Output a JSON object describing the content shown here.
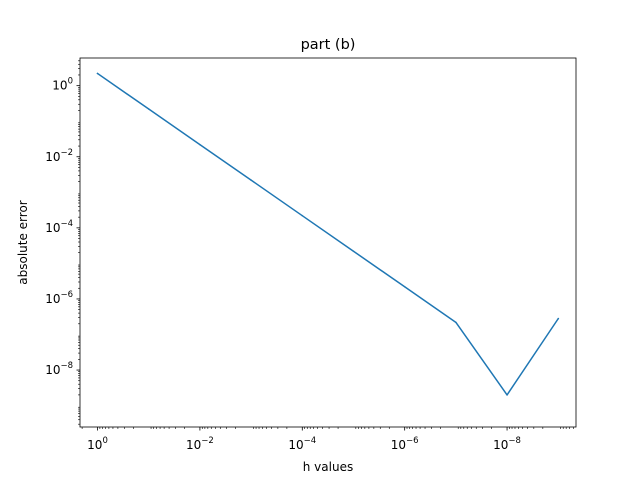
{
  "chart_data": {
    "type": "line",
    "title": "part (b)",
    "xlabel": "h values",
    "ylabel": "absolute error",
    "x_scale": "log",
    "y_scale": "log",
    "x_reversed": true,
    "xlim": [
      2.2,
      4.5e-10
    ],
    "ylim": [
      2.5e-10,
      6.0
    ],
    "grid": false,
    "x_ticks": [
      1,
      0.01,
      0.0001,
      1e-06,
      1e-08
    ],
    "x_tick_labels": [
      {
        "base": "10",
        "exp": "0"
      },
      {
        "base": "10",
        "exp": "−2"
      },
      {
        "base": "10",
        "exp": "−4"
      },
      {
        "base": "10",
        "exp": "−6"
      },
      {
        "base": "10",
        "exp": "−8"
      }
    ],
    "y_ticks": [
      1,
      0.01,
      0.0001,
      1e-06,
      1e-08
    ],
    "y_tick_labels": [
      {
        "base": "10",
        "exp": "0"
      },
      {
        "base": "10",
        "exp": "−2"
      },
      {
        "base": "10",
        "exp": "−4"
      },
      {
        "base": "10",
        "exp": "−6"
      },
      {
        "base": "10",
        "exp": "−8"
      }
    ],
    "line_color": "#1f77b4",
    "series": [
      {
        "x": [
          1,
          0.1,
          0.01,
          0.001,
          0.0001,
          1e-05,
          1e-06,
          1e-07,
          1e-08,
          1e-09
        ],
        "y": [
          2.2,
          0.22,
          0.022,
          0.0022,
          0.00022,
          2.2e-05,
          2.2e-06,
          2.2e-07,
          2e-09,
          2.8e-07
        ]
      }
    ]
  }
}
